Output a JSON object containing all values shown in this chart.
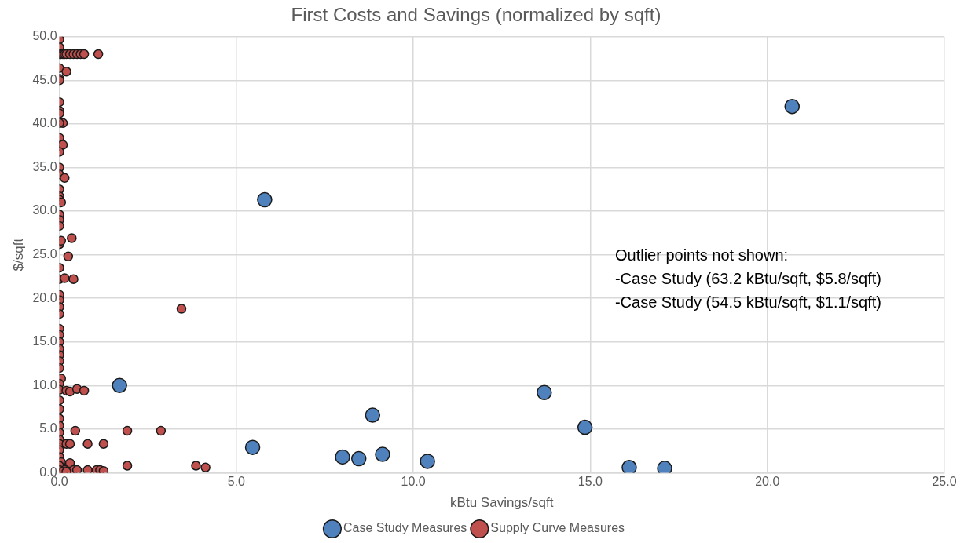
{
  "chart_data": {
    "type": "scatter",
    "title": "First Costs and Savings (normalized by sqft)",
    "xlabel": "kBtu Savings/sqft",
    "ylabel": "$/sqft",
    "xlim": [
      0,
      25
    ],
    "xticks": [
      {
        "value": 0,
        "label": "0.0"
      },
      {
        "value": 5,
        "label": "5.0"
      },
      {
        "value": 10,
        "label": "10.0"
      },
      {
        "value": 15,
        "label": "15.0"
      },
      {
        "value": 20,
        "label": "20.0"
      },
      {
        "value": 25,
        "label": "25.0"
      }
    ],
    "ylim": [
      0,
      50
    ],
    "yticks": [
      {
        "value": 0,
        "label": "0.0"
      },
      {
        "value": 5,
        "label": "5.0"
      },
      {
        "value": 10,
        "label": "10.0"
      },
      {
        "value": 15,
        "label": "15.0"
      },
      {
        "value": 20,
        "label": "20.0"
      },
      {
        "value": 25,
        "label": "25.0"
      },
      {
        "value": 30,
        "label": "30.0"
      },
      {
        "value": 35,
        "label": "35.0"
      },
      {
        "value": 40,
        "label": "40.0"
      },
      {
        "value": 45,
        "label": "45.0"
      },
      {
        "value": 50,
        "label": "50.0"
      }
    ],
    "grid": true,
    "legend": "bottom",
    "marker": "circle",
    "annotations": [
      "Outlier points not shown:",
      "-Case Study (63.2 kBtu/sqft, $5.8/sqft)",
      "-Case Study (54.5 kBtu/sqft, $1.1/sqft)"
    ],
    "series": [
      {
        "name": "Case Study Measures",
        "color": "#4f81bd",
        "x": [
          1.7,
          5.8,
          20.7,
          5.46,
          8.0,
          8.46,
          8.85,
          9.13,
          10.4,
          13.7,
          14.85,
          16.1,
          17.1
        ],
        "values": [
          10.0,
          31.3,
          42.0,
          2.9,
          1.8,
          1.6,
          6.6,
          2.1,
          1.3,
          9.2,
          5.2,
          0.6,
          0.5
        ]
      },
      {
        "name": "Supply Curve Measures",
        "color": "#c0504d",
        "x": [
          0,
          0,
          0,
          0.05,
          0.1,
          0.15,
          0.2,
          0.3,
          0.4,
          0.5,
          0.6,
          0.7,
          1.1,
          0,
          0.2,
          0,
          0,
          0,
          0,
          0,
          0.1,
          0,
          0,
          0,
          0.1,
          0,
          0,
          0,
          0.15,
          0,
          0,
          0,
          0.05,
          0,
          0,
          0,
          0,
          0,
          0.35,
          0.05,
          0.25,
          0,
          0,
          0.15,
          0.4,
          0,
          0,
          0,
          0,
          3.45,
          0,
          0,
          0,
          0,
          0,
          0,
          0,
          0.05,
          0,
          0,
          0.2,
          0.3,
          0.5,
          0.7,
          0,
          0,
          0,
          0,
          0.45,
          1.92,
          2.87,
          0,
          0,
          0,
          0.2,
          0.3,
          0.8,
          1.25,
          0,
          0,
          0.05,
          0.3,
          0,
          1.92,
          3.86,
          4.13,
          0,
          0.15,
          0.4,
          0.5,
          0.8,
          1.05,
          1.15,
          1.25,
          0.1,
          0.2
        ],
        "values": [
          49.7,
          48.8,
          48,
          48,
          48,
          48,
          48,
          48,
          48,
          48,
          48,
          48,
          48,
          46.4,
          46,
          45.2,
          45,
          42.5,
          41.5,
          41.2,
          40.1,
          40.1,
          38.4,
          37.5,
          37.6,
          36.8,
          35,
          34.2,
          33.8,
          32.5,
          31.7,
          31.3,
          31.0,
          29.6,
          29,
          28.3,
          26.5,
          26.2,
          26.9,
          26.6,
          24.8,
          23.5,
          22.2,
          22.3,
          22.2,
          20.4,
          19.8,
          19,
          18.2,
          18.8,
          16.5,
          15.8,
          15,
          14.2,
          13.5,
          12.8,
          12,
          10.8,
          10.2,
          9.5,
          9.4,
          9.3,
          9.6,
          9.4,
          8.3,
          7.3,
          6.2,
          5.4,
          4.8,
          4.8,
          4.8,
          4.6,
          3.8,
          3.3,
          3.3,
          3.3,
          3.3,
          3.3,
          2.6,
          1.8,
          1.2,
          1.1,
          0.8,
          0.8,
          0.8,
          0.6,
          0.3,
          0.3,
          0.3,
          0.3,
          0.3,
          0.3,
          0.3,
          0.2,
          0.1,
          0.1
        ]
      }
    ]
  }
}
